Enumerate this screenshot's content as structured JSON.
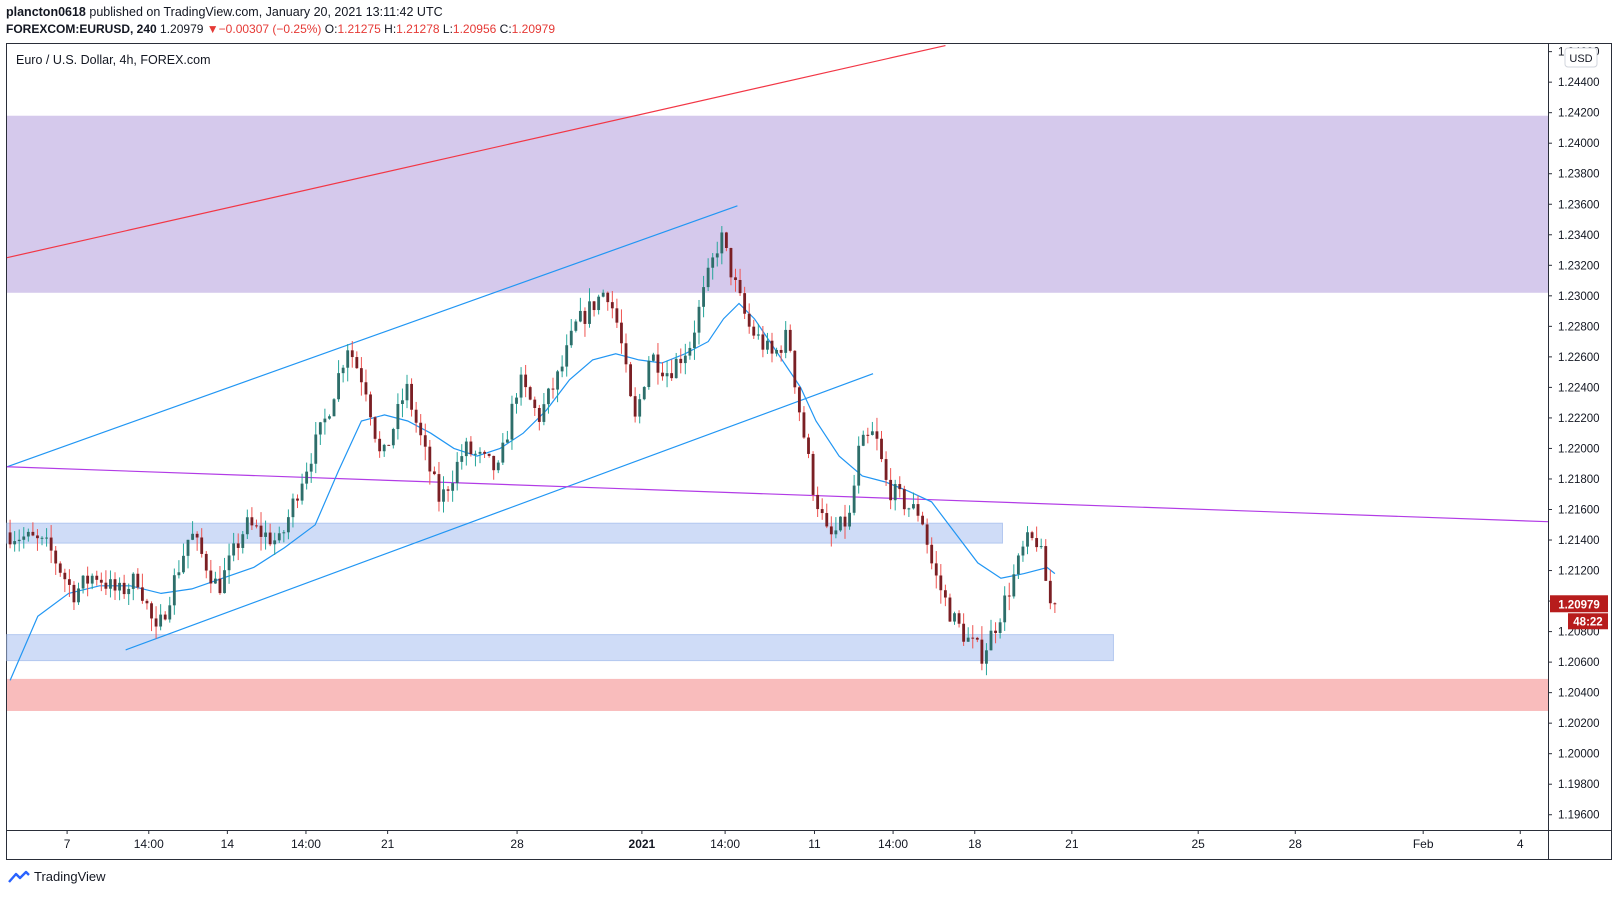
{
  "header": {
    "publisher": "plancton0618",
    "published_text": "published on TradingView.com, January 20, 2021 13:11:42 UTC",
    "symbol": "FOREXCOM:EURUSD, 240",
    "last": "1.20979",
    "change_arrow": "▼",
    "change": "−0.00307 (−0.25%)",
    "o_label": "O:",
    "o_value": "1.21275",
    "h_label": "H:",
    "h_value": "1.21278",
    "l_label": "L:",
    "l_value": "1.20956",
    "c_label": "C:",
    "c_value": "1.20979"
  },
  "footer": {
    "brand": "TradingView",
    "icon": "tradingview-logo-icon"
  },
  "colors": {
    "up": "#26a69a",
    "down": "#ef5350",
    "candle_up": "#2d6e6a",
    "candle_down": "#7a1f24",
    "ma": "#2196f3",
    "channel": "#2196f3",
    "trendline_red": "#f23645",
    "trendline_purple": "#b23ce6",
    "zone_purple": "#d5c9ec",
    "zone_blue": "#cfdcf7",
    "zone_red": "#f9bcbc",
    "price_tag": "#b71c1c"
  },
  "chart_data": {
    "type": "candlestick",
    "title": "Euro / U.S. Dollar, 4h, FOREX.com",
    "currency_label": "USD",
    "y_range": [
      1.195,
      1.2465
    ],
    "y_ticks": [
      "1.19600",
      "1.19800",
      "1.20000",
      "1.20200",
      "1.20400",
      "1.20600",
      "1.20800",
      "1.21000",
      "1.21200",
      "1.21400",
      "1.21600",
      "1.21800",
      "1.22000",
      "1.22200",
      "1.22400",
      "1.22600",
      "1.22800",
      "1.23000",
      "1.23200",
      "1.23400",
      "1.23600",
      "1.23800",
      "1.24000",
      "1.24200",
      "1.24400",
      "1.24600"
    ],
    "x_ticks": [
      {
        "label": "7",
        "t": 0.039
      },
      {
        "label": "14:00",
        "t": 0.092
      },
      {
        "label": "14",
        "t": 0.143
      },
      {
        "label": "14:00",
        "t": 0.194
      },
      {
        "label": "21",
        "t": 0.247
      },
      {
        "label": "28",
        "t": 0.331
      },
      {
        "label": "2021",
        "t": 0.412,
        "bold": true
      },
      {
        "label": "14:00",
        "t": 0.466
      },
      {
        "label": "11",
        "t": 0.524
      },
      {
        "label": "14:00",
        "t": 0.575
      },
      {
        "label": "18",
        "t": 0.628
      },
      {
        "label": "21",
        "t": 0.691
      },
      {
        "label": "25",
        "t": 0.773
      },
      {
        "label": "28",
        "t": 0.836
      },
      {
        "label": "Feb",
        "t": 0.919
      },
      {
        "label": "4",
        "t": 0.982
      }
    ],
    "last_price": {
      "value": 1.20979,
      "label": "1.20979",
      "countdown": "48:22"
    },
    "zones": [
      {
        "name": "supply-zone-purple",
        "from": 1.2302,
        "to": 1.2418,
        "t0": 0,
        "t1": 1,
        "color": "#d5c9ec"
      },
      {
        "name": "support-zone-blue-upper",
        "from": 1.2138,
        "to": 1.2151,
        "t0": 0,
        "t1": 0.646,
        "color": "#cfdcf7"
      },
      {
        "name": "support-zone-blue-lower",
        "from": 1.2061,
        "to": 1.2078,
        "t0": 0,
        "t1": 0.718,
        "color": "#cfdcf7"
      },
      {
        "name": "demand-zone-red",
        "from": 1.2028,
        "to": 1.2049,
        "t0": 0,
        "t1": 1,
        "color": "#f9bcbc"
      }
    ],
    "lines": [
      {
        "name": "red-trendline",
        "t0": 0,
        "p0": 1.2325,
        "t1": 0.609,
        "p1": 1.2464,
        "color": "#f23645"
      },
      {
        "name": "channel-upper-line",
        "t0": 0,
        "p0": 1.2188,
        "t1": 0.474,
        "p1": 1.2359,
        "color": "#2196f3"
      },
      {
        "name": "channel-lower-line",
        "t0": 0.077,
        "p0": 1.2068,
        "t1": 0.562,
        "p1": 1.2249,
        "color": "#2196f3"
      },
      {
        "name": "purple-trendline",
        "t0": 0,
        "p0": 1.2188,
        "t1": 1,
        "p1": 1.2152,
        "color": "#b23ce6"
      }
    ],
    "series": [
      {
        "name": "",
        "type": "candles",
        "t0": 0.002,
        "t1": 0.68,
        "waypoints": [
          [
            0.002,
            1.2145
          ],
          [
            0.02,
            1.214
          ],
          [
            0.03,
            1.2135
          ],
          [
            0.046,
            1.2105
          ],
          [
            0.06,
            1.2118
          ],
          [
            0.075,
            1.2105
          ],
          [
            0.088,
            1.2115
          ],
          [
            0.1,
            1.2077
          ],
          [
            0.112,
            1.2115
          ],
          [
            0.122,
            1.2145
          ],
          [
            0.14,
            1.2108
          ],
          [
            0.158,
            1.215
          ],
          [
            0.18,
            1.2138
          ],
          [
            0.194,
            1.218
          ],
          [
            0.21,
            1.222
          ],
          [
            0.224,
            1.2268
          ],
          [
            0.236,
            1.224
          ],
          [
            0.246,
            1.219
          ],
          [
            0.262,
            1.224
          ],
          [
            0.276,
            1.219
          ],
          [
            0.284,
            1.2165
          ],
          [
            0.3,
            1.22
          ],
          [
            0.322,
            1.2185
          ],
          [
            0.335,
            1.2245
          ],
          [
            0.348,
            1.222
          ],
          [
            0.362,
            1.225
          ],
          [
            0.372,
            1.228
          ],
          [
            0.392,
            1.2305
          ],
          [
            0.4,
            1.2278
          ],
          [
            0.41,
            1.2215
          ],
          [
            0.42,
            1.2262
          ],
          [
            0.432,
            1.225
          ],
          [
            0.446,
            1.2268
          ],
          [
            0.456,
            1.2305
          ],
          [
            0.466,
            1.234
          ],
          [
            0.476,
            1.2305
          ],
          [
            0.484,
            1.228
          ],
          [
            0.492,
            1.227
          ],
          [
            0.5,
            1.226
          ],
          [
            0.51,
            1.2275
          ],
          [
            0.516,
            1.2232
          ],
          [
            0.526,
            1.2175
          ],
          [
            0.536,
            1.214
          ],
          [
            0.55,
            1.2155
          ],
          [
            0.556,
            1.22
          ],
          [
            0.566,
            1.221
          ],
          [
            0.574,
            1.2175
          ],
          [
            0.59,
            1.216
          ],
          [
            0.596,
            1.2158
          ],
          [
            0.604,
            1.212
          ],
          [
            0.616,
            1.209
          ],
          [
            0.626,
            1.2075
          ],
          [
            0.636,
            1.2065
          ],
          [
            0.646,
            1.2088
          ],
          [
            0.656,
            1.2115
          ],
          [
            0.664,
            1.2138
          ],
          [
            0.672,
            1.214
          ],
          [
            0.68,
            1.2098
          ]
        ]
      },
      {
        "name": "",
        "type": "moving-average",
        "points": [
          [
            0.002,
            1.2048
          ],
          [
            0.02,
            1.209
          ],
          [
            0.04,
            1.2105
          ],
          [
            0.06,
            1.211
          ],
          [
            0.08,
            1.211
          ],
          [
            0.1,
            1.2105
          ],
          [
            0.12,
            1.2108
          ],
          [
            0.14,
            1.2115
          ],
          [
            0.16,
            1.2122
          ],
          [
            0.18,
            1.2135
          ],
          [
            0.2,
            1.215
          ],
          [
            0.215,
            1.2185
          ],
          [
            0.23,
            1.2218
          ],
          [
            0.245,
            1.2222
          ],
          [
            0.26,
            1.2218
          ],
          [
            0.275,
            1.221
          ],
          [
            0.29,
            1.22
          ],
          [
            0.305,
            1.2195
          ],
          [
            0.32,
            1.22
          ],
          [
            0.335,
            1.221
          ],
          [
            0.35,
            1.2225
          ],
          [
            0.365,
            1.2245
          ],
          [
            0.38,
            1.2258
          ],
          [
            0.395,
            1.2262
          ],
          [
            0.41,
            1.2258
          ],
          [
            0.425,
            1.2256
          ],
          [
            0.44,
            1.2262
          ],
          [
            0.455,
            1.227
          ],
          [
            0.465,
            1.2285
          ],
          [
            0.475,
            1.2295
          ],
          [
            0.485,
            1.2285
          ],
          [
            0.495,
            1.227
          ],
          [
            0.505,
            1.2255
          ],
          [
            0.515,
            1.224
          ],
          [
            0.525,
            1.2218
          ],
          [
            0.54,
            1.2195
          ],
          [
            0.555,
            1.2182
          ],
          [
            0.57,
            1.2178
          ],
          [
            0.585,
            1.2172
          ],
          [
            0.6,
            1.2165
          ],
          [
            0.615,
            1.2145
          ],
          [
            0.63,
            1.2125
          ],
          [
            0.645,
            1.2115
          ],
          [
            0.66,
            1.2118
          ],
          [
            0.675,
            1.2122
          ],
          [
            0.68,
            1.2118
          ]
        ]
      }
    ]
  }
}
